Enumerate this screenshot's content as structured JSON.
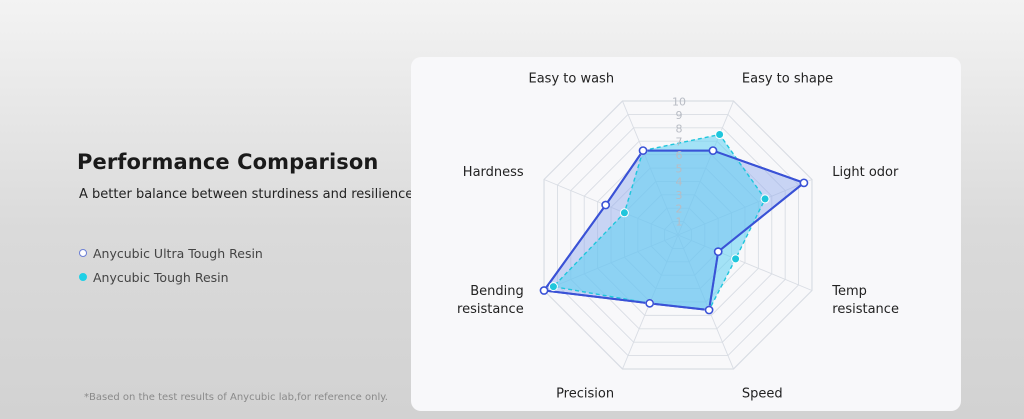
{
  "heading": {
    "title": "Performance Comparison",
    "subtitle": "A better balance between sturdiness and resilience."
  },
  "legend": [
    {
      "label": "Anycubic Ultra Tough Resin"
    },
    {
      "label": "Anycubic Tough Resin"
    }
  ],
  "footnote": "*Based on the test results of Anycubic lab,for reference only.",
  "colors": {
    "ultra_stroke": "#3a52d6",
    "ultra_fill": "#8da8ee",
    "tough_stroke": "#1fc6dc",
    "tough_fill": "#5cd0f2",
    "grid": "#d9dde4"
  },
  "chart_data": {
    "type": "radar",
    "axes": [
      "Easy to wash",
      "Easy to shape",
      "Light odor",
      "Temp resistance",
      "Speed",
      "Precision",
      "Bending resistance",
      "Hardness"
    ],
    "axis_label_lines": [
      [
        "Easy to wash"
      ],
      [
        "Easy to shape"
      ],
      [
        "Light odor"
      ],
      [
        "Temp",
        "resistance"
      ],
      [
        "Speed"
      ],
      [
        "Precision"
      ],
      [
        "Bending",
        "resistance"
      ],
      [
        "Hardness"
      ]
    ],
    "ticks": [
      "1",
      "2",
      "3",
      "4",
      "5",
      "6",
      "7",
      "8",
      "9",
      "10"
    ],
    "range": [
      0,
      10
    ],
    "series": [
      {
        "name": "Anycubic Ultra Tough Resin",
        "values": [
          6.3,
          6.3,
          9.4,
          3.0,
          5.6,
          5.1,
          10.0,
          5.4
        ]
      },
      {
        "name": "Anycubic Tough Resin",
        "values": [
          6.3,
          7.5,
          6.5,
          4.3,
          5.6,
          5.1,
          9.3,
          4.0
        ]
      }
    ]
  }
}
